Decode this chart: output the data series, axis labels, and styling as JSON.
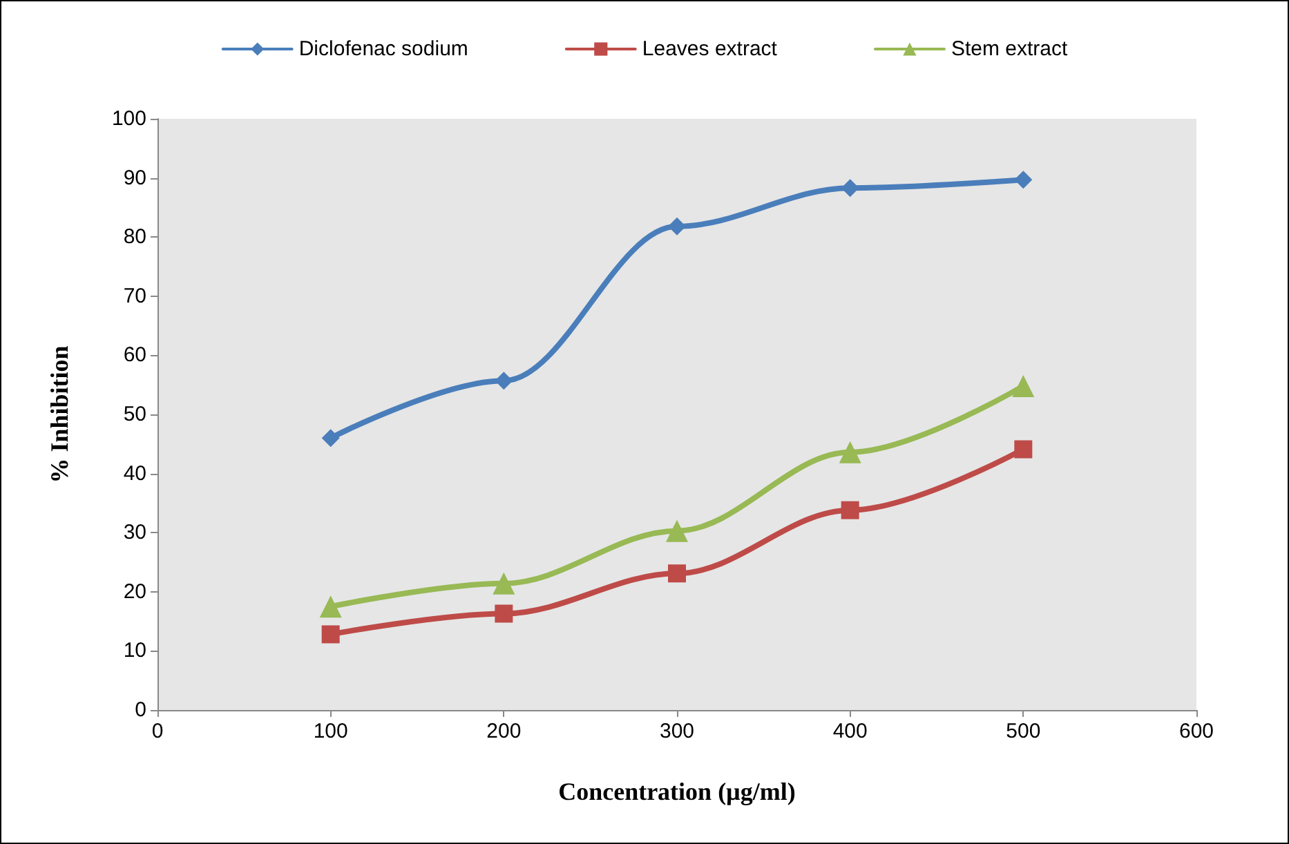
{
  "chart_data": {
    "type": "line",
    "xlabel": "Concentration (µg/ml)",
    "ylabel": "% Inhibition",
    "x": [
      100,
      200,
      300,
      400,
      500
    ],
    "series": [
      {
        "name": "Diclofenac sodium",
        "color": "#4a7ebb",
        "marker": "diamond",
        "values": [
          46,
          55.7,
          81.8,
          88.3,
          89.7
        ]
      },
      {
        "name": "Leaves extract",
        "color": "#be4b48",
        "marker": "square",
        "values": [
          12.8,
          16.3,
          23.1,
          33.8,
          44.1
        ]
      },
      {
        "name": "Stem extract",
        "color": "#98b954",
        "marker": "triangle",
        "values": [
          17.5,
          21.4,
          30.3,
          43.6,
          54.8
        ]
      }
    ],
    "xlim": [
      0,
      600
    ],
    "xticks": [
      0,
      100,
      200,
      300,
      400,
      500,
      600
    ],
    "ylim": [
      0,
      100
    ],
    "yticks": [
      0,
      10,
      20,
      30,
      40,
      50,
      60,
      70,
      80,
      90,
      100
    ],
    "grid": false,
    "legend": "top",
    "line_style": "solid"
  }
}
